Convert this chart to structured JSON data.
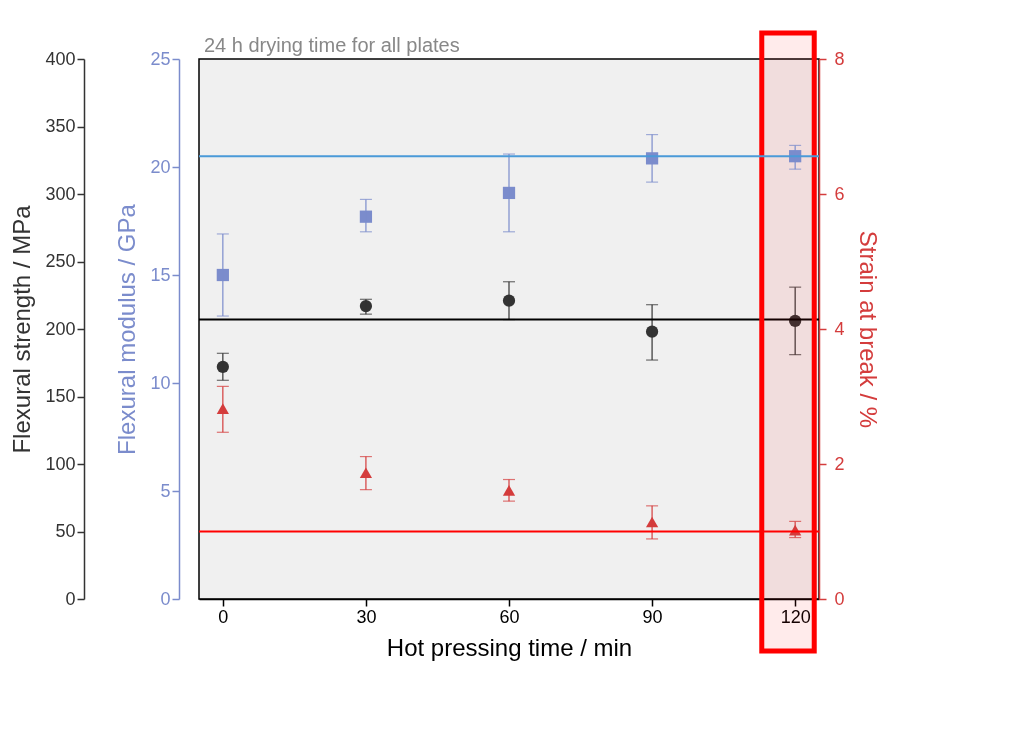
{
  "chart_data": {
    "type": "scatter",
    "xlabel": "Hot pressing time  /  min",
    "ylabel": "Flexural strength  /  MPa",
    "y2label": "Flexural modulus  /  GPa",
    "y3label": "Strain at break  /  %",
    "x": [
      0,
      30,
      60,
      90,
      120
    ],
    "xlim": [
      -5,
      125
    ],
    "xticks": [
      0,
      30,
      60,
      90,
      120
    ],
    "ylim": [
      0,
      400
    ],
    "yticks": [
      0,
      50,
      100,
      150,
      200,
      250,
      300,
      350,
      400
    ],
    "y2lim": [
      0,
      25
    ],
    "y2ticks": [
      0,
      5,
      10,
      15,
      20,
      25
    ],
    "y3lim": [
      0,
      8
    ],
    "y3ticks": [
      0,
      2,
      4,
      6,
      8
    ],
    "series": [
      {
        "axis": "y",
        "color": "#333333",
        "marker": "circle",
        "values": [
          172,
          217,
          221,
          198,
          206
        ],
        "errors": [
          [
            162,
            182
          ],
          [
            211,
            222
          ],
          [
            207,
            235
          ],
          [
            177,
            218
          ],
          [
            181,
            231
          ]
        ]
      },
      {
        "axis": "y2",
        "color": "#7b8ccc",
        "marker": "square",
        "values": [
          15.0,
          17.7,
          18.8,
          20.4,
          20.5
        ],
        "errors": [
          [
            13.1,
            16.9
          ],
          [
            17.0,
            18.5
          ],
          [
            17.0,
            20.6
          ],
          [
            19.3,
            21.5
          ],
          [
            19.9,
            21.0
          ]
        ]
      },
      {
        "axis": "y3",
        "color": "#d43c3c",
        "marker": "triangle",
        "values": [
          2.82,
          1.87,
          1.61,
          1.14,
          1.02
        ],
        "errors": [
          [
            2.47,
            3.15
          ],
          [
            1.62,
            2.11
          ],
          [
            1.45,
            1.77
          ],
          [
            0.89,
            1.38
          ],
          [
            0.91,
            1.15
          ]
        ]
      }
    ],
    "ref_lines": [
      {
        "axis": "y",
        "value": 207,
        "color": "#000000"
      },
      {
        "axis": "y2",
        "value": 20.5,
        "color": "#4a9ad8"
      },
      {
        "axis": "y3",
        "value": 1.0,
        "color": "#ff0000"
      }
    ],
    "bands": [
      {
        "axis": "x",
        "from": 113,
        "to": 124,
        "color": "#ff0000"
      }
    ],
    "annotations": [
      "24 h drying time for all plates"
    ],
    "grid": false
  }
}
